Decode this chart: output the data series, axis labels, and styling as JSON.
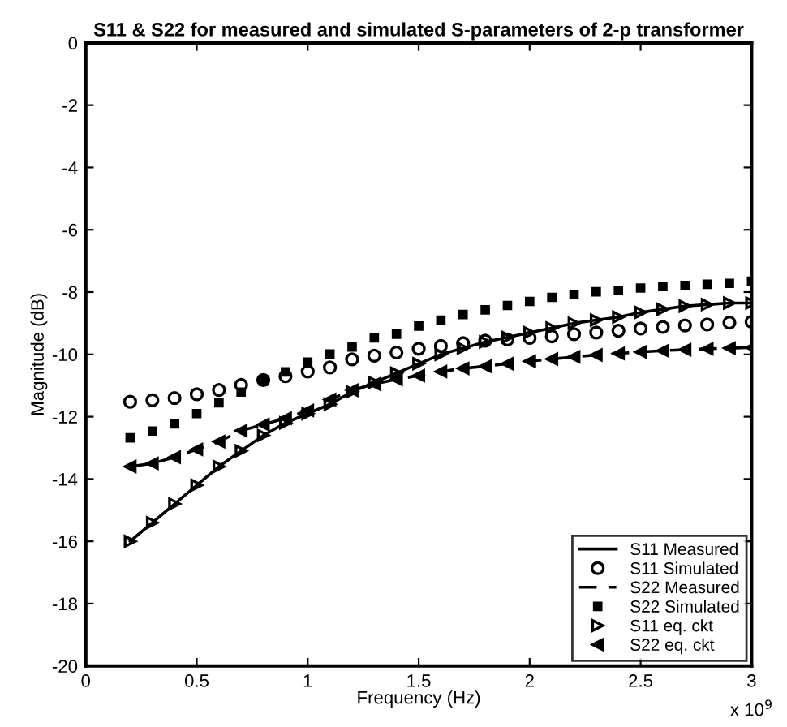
{
  "chart_data": {
    "type": "line",
    "title": "S11 & S22 for measured and simulated S-parameters of 2-p transformer",
    "xlabel": "Frequency (Hz)",
    "ylabel": "Magnitude (dB)",
    "x": [
      0.2,
      0.3,
      0.4,
      0.5,
      0.6,
      0.7,
      0.8,
      0.9,
      1.0,
      1.1,
      1.2,
      1.3,
      1.4,
      1.5,
      1.6,
      1.7,
      1.8,
      1.9,
      2.0,
      2.1,
      2.2,
      2.3,
      2.4,
      2.5,
      2.6,
      2.7,
      2.8,
      2.9,
      3.0
    ],
    "series": [
      {
        "name": "S11 Measured",
        "color": "#000000",
        "line_style": "solid",
        "marker": "none",
        "values": [
          -16.0,
          -15.4,
          -14.8,
          -14.2,
          -13.6,
          -13.1,
          -12.6,
          -12.2,
          -11.9,
          -11.6,
          -11.2,
          -10.9,
          -10.6,
          -10.3,
          -10.0,
          -9.8,
          -9.6,
          -9.45,
          -9.3,
          -9.15,
          -9.0,
          -8.9,
          -8.8,
          -8.65,
          -8.55,
          -8.45,
          -8.4,
          -8.35,
          -8.35
        ]
      },
      {
        "name": "S11 Simulated",
        "type": "scatter",
        "color": "#000000",
        "marker": "circle",
        "values": [
          -11.52,
          -11.47,
          -11.4,
          -11.28,
          -11.14,
          -10.98,
          -10.82,
          -10.7,
          -10.55,
          -10.42,
          -10.16,
          -10.04,
          -9.94,
          -9.82,
          -9.73,
          -9.64,
          -9.56,
          -9.52,
          -9.47,
          -9.42,
          -9.35,
          -9.3,
          -9.24,
          -9.17,
          -9.12,
          -9.07,
          -9.04,
          -8.98,
          -8.95
        ]
      },
      {
        "name": "S22 Measured",
        "color": "#000000",
        "line_style": "dashed",
        "marker": "none",
        "values": [
          -13.6,
          -13.5,
          -13.3,
          -13.05,
          -12.8,
          -12.45,
          -12.25,
          -12.05,
          -11.8,
          -11.45,
          -11.15,
          -10.95,
          -10.8,
          -10.68,
          -10.55,
          -10.45,
          -10.38,
          -10.3,
          -10.22,
          -10.15,
          -10.08,
          -10.02,
          -9.97,
          -9.92,
          -9.88,
          -9.85,
          -9.82,
          -9.8,
          -9.78
        ]
      },
      {
        "name": "S22 Simulated",
        "type": "scatter",
        "color": "#000000",
        "marker": "square",
        "values": [
          -12.68,
          -12.46,
          -12.23,
          -11.9,
          -11.55,
          -11.21,
          -10.86,
          -10.56,
          -10.25,
          -9.99,
          -9.76,
          -9.47,
          -9.35,
          -9.09,
          -8.9,
          -8.72,
          -8.57,
          -8.43,
          -8.3,
          -8.17,
          -8.08,
          -7.99,
          -7.94,
          -7.87,
          -7.82,
          -7.79,
          -7.75,
          -7.72,
          -7.65
        ]
      },
      {
        "name": "S11 eq. ckt",
        "type": "scatter",
        "color": "#000000",
        "marker": "triangle-right",
        "values": [
          -16.0,
          -15.4,
          -14.8,
          -14.2,
          -13.6,
          -13.1,
          -12.6,
          -12.2,
          -11.9,
          -11.6,
          -11.2,
          -10.9,
          -10.6,
          -10.3,
          -10.0,
          -9.8,
          -9.6,
          -9.45,
          -9.3,
          -9.15,
          -9.0,
          -8.9,
          -8.8,
          -8.65,
          -8.55,
          -8.45,
          -8.4,
          -8.35,
          -8.35
        ]
      },
      {
        "name": "S22 eq. ckt",
        "type": "scatter",
        "color": "#000000",
        "marker": "triangle-left",
        "values": [
          -13.6,
          -13.5,
          -13.3,
          -13.05,
          -12.8,
          -12.45,
          -12.25,
          -12.05,
          -11.8,
          -11.45,
          -11.15,
          -10.95,
          -10.8,
          -10.68,
          -10.55,
          -10.45,
          -10.38,
          -10.3,
          -10.22,
          -10.15,
          -10.08,
          -10.02,
          -9.97,
          -9.92,
          -9.88,
          -9.85,
          -9.82,
          -9.8,
          -9.78
        ]
      }
    ],
    "xlim": [
      0,
      3
    ],
    "ylim": [
      -20,
      0
    ],
    "xticks": [
      0,
      0.5,
      1,
      1.5,
      2,
      2.5,
      3
    ],
    "yticks": [
      -20,
      -18,
      -16,
      -14,
      -12,
      -10,
      -8,
      -6,
      -4,
      -2,
      0
    ],
    "annotations": [
      "x 10$^{9}$"
    ],
    "legend": "bottom right",
    "grid": false
  }
}
